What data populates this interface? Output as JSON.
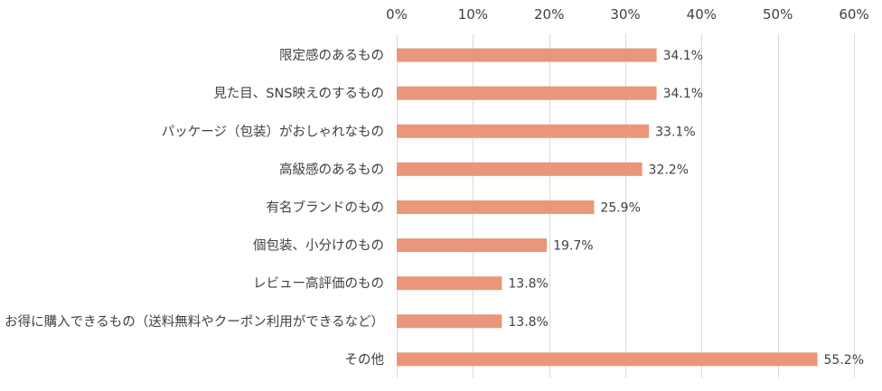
{
  "chart_data": {
    "type": "bar",
    "orientation": "horizontal",
    "title": "",
    "xlabel": "",
    "ylabel": "",
    "xlim": [
      0,
      60
    ],
    "x_ticks": [
      0,
      10,
      20,
      30,
      40,
      50,
      60
    ],
    "x_tick_labels": [
      "0%",
      "10%",
      "20%",
      "30%",
      "40%",
      "50%",
      "60%"
    ],
    "x_axis_position": "top",
    "grid": true,
    "legend": "none",
    "categories": [
      "限定感のあるもの",
      "見た目、SNS映えのするもの",
      "パッケージ（包装）がおしゃれなもの",
      "高級感のあるもの",
      "有名ブランドのもの",
      "個包装、小分けのもの",
      "レビュー高評価のもの",
      "お得に購入できるもの（送料無料やクーポン利用ができるなど）",
      "その他"
    ],
    "values": [
      34.1,
      34.1,
      33.1,
      32.2,
      25.9,
      19.7,
      13.8,
      13.8,
      55.2
    ],
    "value_labels": [
      "34.1%",
      "34.1%",
      "33.1%",
      "32.2%",
      "25.9%",
      "19.7%",
      "13.8%",
      "13.8%",
      "55.2%"
    ],
    "bar_color": "#E9967A",
    "grid_color": "#D9D9D9",
    "text_color": "#404040"
  }
}
